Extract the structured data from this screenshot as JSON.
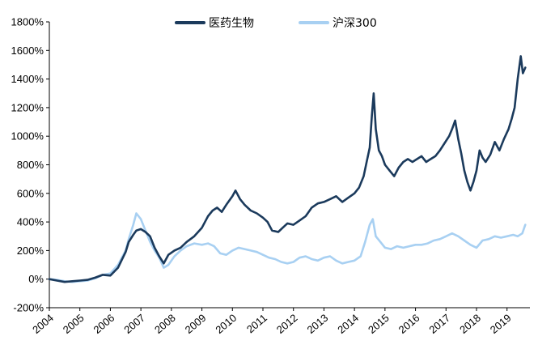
{
  "chart_data": {
    "type": "line",
    "title": "",
    "xlabel": "",
    "ylabel": "",
    "ylim": [
      -200,
      1800
    ],
    "xlim": [
      2004,
      2019.75
    ],
    "grid": false,
    "legend_position": "top-center",
    "y_ticks": [
      {
        "value": 1800,
        "label": "1800%"
      },
      {
        "value": 1600,
        "label": "1600%"
      },
      {
        "value": 1400,
        "label": "1400%"
      },
      {
        "value": 1200,
        "label": "1200%"
      },
      {
        "value": 1000,
        "label": "1000%"
      },
      {
        "value": 800,
        "label": "800%"
      },
      {
        "value": 600,
        "label": "600%"
      },
      {
        "value": 400,
        "label": "400%"
      },
      {
        "value": 200,
        "label": "200%"
      },
      {
        "value": 0,
        "label": "0%"
      },
      {
        "value": -200,
        "label": "-200%"
      }
    ],
    "x_ticks": [
      {
        "value": 2004,
        "label": "2004"
      },
      {
        "value": 2005,
        "label": "2005"
      },
      {
        "value": 2006,
        "label": "2006"
      },
      {
        "value": 2007,
        "label": "2007"
      },
      {
        "value": 2008,
        "label": "2008"
      },
      {
        "value": 2009,
        "label": "2009"
      },
      {
        "value": 2010,
        "label": "2010"
      },
      {
        "value": 2011,
        "label": "2011"
      },
      {
        "value": 2012,
        "label": "2012"
      },
      {
        "value": 2013,
        "label": "2013"
      },
      {
        "value": 2014,
        "label": "2014"
      },
      {
        "value": 2015,
        "label": "2015"
      },
      {
        "value": 2016,
        "label": "2016"
      },
      {
        "value": 2017,
        "label": "2017"
      },
      {
        "value": 2018,
        "label": "2018"
      },
      {
        "value": 2019,
        "label": "2019"
      }
    ],
    "series": [
      {
        "name": "医药生物",
        "color": "#1b3a5c",
        "points": [
          [
            2004.0,
            0
          ],
          [
            2004.25,
            -10
          ],
          [
            2004.5,
            -20
          ],
          [
            2004.75,
            -15
          ],
          [
            2005.0,
            -10
          ],
          [
            2005.25,
            -5
          ],
          [
            2005.5,
            10
          ],
          [
            2005.75,
            30
          ],
          [
            2006.0,
            25
          ],
          [
            2006.25,
            80
          ],
          [
            2006.5,
            190
          ],
          [
            2006.6,
            260
          ],
          [
            2006.75,
            310
          ],
          [
            2006.85,
            340
          ],
          [
            2007.0,
            350
          ],
          [
            2007.15,
            330
          ],
          [
            2007.3,
            300
          ],
          [
            2007.45,
            220
          ],
          [
            2007.6,
            160
          ],
          [
            2007.75,
            110
          ],
          [
            2007.9,
            170
          ],
          [
            2008.1,
            200
          ],
          [
            2008.3,
            220
          ],
          [
            2008.5,
            260
          ],
          [
            2008.75,
            300
          ],
          [
            2009.0,
            360
          ],
          [
            2009.2,
            440
          ],
          [
            2009.35,
            480
          ],
          [
            2009.5,
            500
          ],
          [
            2009.65,
            470
          ],
          [
            2009.8,
            520
          ],
          [
            2010.0,
            580
          ],
          [
            2010.1,
            620
          ],
          [
            2010.25,
            560
          ],
          [
            2010.4,
            520
          ],
          [
            2010.6,
            480
          ],
          [
            2010.8,
            460
          ],
          [
            2011.0,
            430
          ],
          [
            2011.15,
            400
          ],
          [
            2011.3,
            340
          ],
          [
            2011.5,
            330
          ],
          [
            2011.65,
            360
          ],
          [
            2011.8,
            390
          ],
          [
            2012.0,
            380
          ],
          [
            2012.2,
            410
          ],
          [
            2012.4,
            440
          ],
          [
            2012.6,
            500
          ],
          [
            2012.8,
            530
          ],
          [
            2013.0,
            540
          ],
          [
            2013.2,
            560
          ],
          [
            2013.4,
            580
          ],
          [
            2013.6,
            540
          ],
          [
            2013.8,
            570
          ],
          [
            2014.0,
            600
          ],
          [
            2014.15,
            640
          ],
          [
            2014.3,
            720
          ],
          [
            2014.4,
            820
          ],
          [
            2014.5,
            920
          ],
          [
            2014.57,
            1140
          ],
          [
            2014.63,
            1300
          ],
          [
            2014.7,
            1050
          ],
          [
            2014.8,
            900
          ],
          [
            2014.9,
            860
          ],
          [
            2015.0,
            800
          ],
          [
            2015.15,
            760
          ],
          [
            2015.3,
            720
          ],
          [
            2015.45,
            780
          ],
          [
            2015.6,
            820
          ],
          [
            2015.75,
            840
          ],
          [
            2015.9,
            820
          ],
          [
            2016.05,
            840
          ],
          [
            2016.2,
            860
          ],
          [
            2016.35,
            820
          ],
          [
            2016.5,
            840
          ],
          [
            2016.65,
            860
          ],
          [
            2016.8,
            900
          ],
          [
            2016.95,
            950
          ],
          [
            2017.1,
            1000
          ],
          [
            2017.2,
            1050
          ],
          [
            2017.3,
            1110
          ],
          [
            2017.4,
            980
          ],
          [
            2017.5,
            880
          ],
          [
            2017.6,
            760
          ],
          [
            2017.7,
            680
          ],
          [
            2017.8,
            620
          ],
          [
            2017.9,
            680
          ],
          [
            2018.0,
            760
          ],
          [
            2018.1,
            900
          ],
          [
            2018.2,
            850
          ],
          [
            2018.3,
            820
          ],
          [
            2018.45,
            870
          ],
          [
            2018.6,
            960
          ],
          [
            2018.75,
            900
          ],
          [
            2018.9,
            980
          ],
          [
            2019.05,
            1050
          ],
          [
            2019.15,
            1120
          ],
          [
            2019.25,
            1200
          ],
          [
            2019.35,
            1400
          ],
          [
            2019.45,
            1560
          ],
          [
            2019.52,
            1440
          ],
          [
            2019.6,
            1480
          ]
        ]
      },
      {
        "name": "沪深300",
        "color": "#a8d0f2",
        "points": [
          [
            2004.0,
            0
          ],
          [
            2004.25,
            -5
          ],
          [
            2004.5,
            -15
          ],
          [
            2004.75,
            -20
          ],
          [
            2005.0,
            -15
          ],
          [
            2005.25,
            -10
          ],
          [
            2005.5,
            5
          ],
          [
            2005.75,
            30
          ],
          [
            2006.0,
            40
          ],
          [
            2006.25,
            100
          ],
          [
            2006.5,
            200
          ],
          [
            2006.6,
            280
          ],
          [
            2006.75,
            380
          ],
          [
            2006.85,
            460
          ],
          [
            2007.0,
            420
          ],
          [
            2007.15,
            340
          ],
          [
            2007.3,
            260
          ],
          [
            2007.45,
            200
          ],
          [
            2007.6,
            150
          ],
          [
            2007.75,
            80
          ],
          [
            2007.9,
            100
          ],
          [
            2008.1,
            160
          ],
          [
            2008.3,
            200
          ],
          [
            2008.5,
            230
          ],
          [
            2008.75,
            250
          ],
          [
            2009.0,
            240
          ],
          [
            2009.2,
            250
          ],
          [
            2009.4,
            230
          ],
          [
            2009.6,
            180
          ],
          [
            2009.8,
            170
          ],
          [
            2010.0,
            200
          ],
          [
            2010.2,
            220
          ],
          [
            2010.4,
            210
          ],
          [
            2010.6,
            200
          ],
          [
            2010.8,
            190
          ],
          [
            2011.0,
            170
          ],
          [
            2011.2,
            150
          ],
          [
            2011.4,
            140
          ],
          [
            2011.6,
            120
          ],
          [
            2011.8,
            110
          ],
          [
            2012.0,
            120
          ],
          [
            2012.2,
            150
          ],
          [
            2012.4,
            160
          ],
          [
            2012.6,
            140
          ],
          [
            2012.8,
            130
          ],
          [
            2013.0,
            150
          ],
          [
            2013.2,
            160
          ],
          [
            2013.4,
            130
          ],
          [
            2013.6,
            110
          ],
          [
            2013.8,
            120
          ],
          [
            2014.0,
            130
          ],
          [
            2014.2,
            160
          ],
          [
            2014.35,
            260
          ],
          [
            2014.5,
            380
          ],
          [
            2014.6,
            420
          ],
          [
            2014.7,
            300
          ],
          [
            2014.85,
            260
          ],
          [
            2015.0,
            220
          ],
          [
            2015.2,
            210
          ],
          [
            2015.4,
            230
          ],
          [
            2015.6,
            220
          ],
          [
            2015.8,
            230
          ],
          [
            2016.0,
            240
          ],
          [
            2016.2,
            240
          ],
          [
            2016.4,
            250
          ],
          [
            2016.6,
            270
          ],
          [
            2016.8,
            280
          ],
          [
            2017.0,
            300
          ],
          [
            2017.2,
            320
          ],
          [
            2017.4,
            300
          ],
          [
            2017.6,
            270
          ],
          [
            2017.8,
            240
          ],
          [
            2018.0,
            220
          ],
          [
            2018.2,
            270
          ],
          [
            2018.4,
            280
          ],
          [
            2018.6,
            300
          ],
          [
            2018.8,
            290
          ],
          [
            2019.0,
            300
          ],
          [
            2019.2,
            310
          ],
          [
            2019.35,
            300
          ],
          [
            2019.5,
            320
          ],
          [
            2019.6,
            380
          ]
        ]
      }
    ]
  }
}
